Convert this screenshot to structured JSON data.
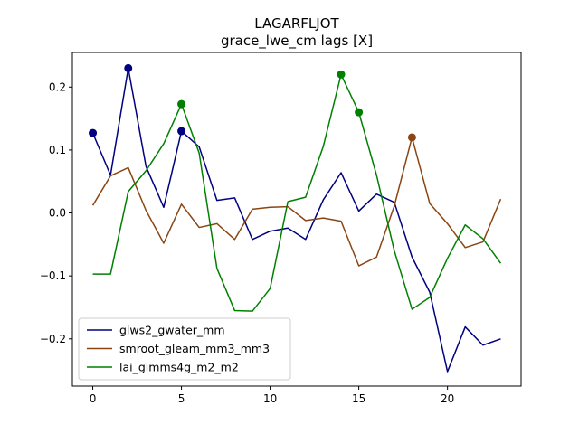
{
  "chart_data": {
    "type": "line",
    "title": "LAGARFLJOT",
    "subtitle": "grace_lwe_cm lags [X]",
    "xlabel": "",
    "ylabel": "",
    "xlim": [
      -1.15,
      24.15
    ],
    "ylim": [
      -0.275,
      0.255
    ],
    "xticks": [
      0,
      5,
      10,
      15,
      20
    ],
    "yticks": [
      -0.2,
      -0.1,
      0.0,
      0.1,
      0.2
    ],
    "xtick_labels": [
      "0",
      "5",
      "10",
      "15",
      "20"
    ],
    "ytick_labels": [
      "−0.2",
      "−0.1",
      "0.0",
      "0.1",
      "0.2"
    ],
    "grid": false,
    "legend_position": "lower-left",
    "x": [
      0,
      1,
      2,
      3,
      4,
      5,
      6,
      7,
      8,
      9,
      10,
      11,
      12,
      13,
      14,
      15,
      16,
      17,
      18,
      19,
      20,
      21,
      22,
      23
    ],
    "series": [
      {
        "name": "glws2_gwater_mm",
        "color": "#000080",
        "values": [
          0.127,
          0.06,
          0.23,
          0.074,
          0.009,
          0.13,
          0.105,
          0.02,
          0.024,
          -0.042,
          -0.029,
          -0.024,
          -0.042,
          0.021,
          0.064,
          0.003,
          0.03,
          0.017,
          -0.07,
          -0.126,
          -0.252,
          -0.181,
          -0.21,
          -0.2
        ],
        "markers": [
          0,
          2,
          5
        ]
      },
      {
        "name": "smroot_gleam_mm3_mm3",
        "color": "#8b4513",
        "values": [
          0.012,
          0.059,
          0.072,
          0.004,
          -0.048,
          0.014,
          -0.023,
          -0.017,
          -0.042,
          0.006,
          0.009,
          0.01,
          -0.012,
          -0.008,
          -0.013,
          -0.084,
          -0.07,
          0.011,
          0.12,
          0.015,
          -0.017,
          -0.055,
          -0.046,
          0.022
        ],
        "markers": [
          18
        ]
      },
      {
        "name": "lai_gimms4g_m2_m2",
        "color": "#008000",
        "values": [
          -0.097,
          -0.097,
          0.034,
          0.067,
          0.11,
          0.173,
          0.095,
          -0.088,
          -0.155,
          -0.156,
          -0.12,
          0.018,
          0.025,
          0.106,
          0.22,
          0.16,
          0.06,
          -0.06,
          -0.153,
          -0.134,
          -0.072,
          -0.019,
          -0.041,
          -0.08
        ],
        "markers": [
          5,
          14,
          15
        ]
      }
    ]
  }
}
